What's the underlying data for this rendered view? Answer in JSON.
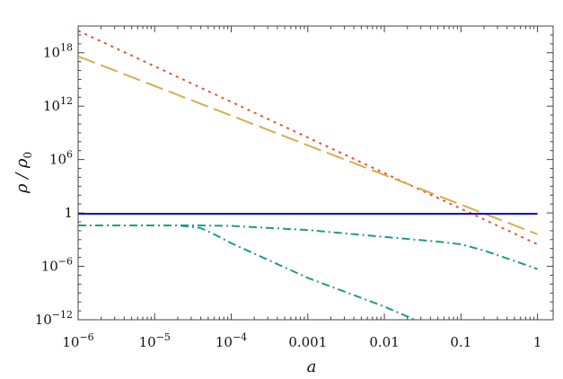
{
  "chart_data": {
    "type": "line",
    "xscale": "log",
    "yscale": "log",
    "xlim": [
      1e-06,
      1.6
    ],
    "ylim": [
      1e-12,
      1e+21
    ],
    "xlabel": "a",
    "ylabel": "ρ / ρ0",
    "grid": false,
    "legend": "none",
    "x_ticks": [
      {
        "v": 1e-06,
        "m": "10",
        "e": "−6"
      },
      {
        "v": 1e-05,
        "m": "10",
        "e": "−5"
      },
      {
        "v": 0.0001,
        "m": "10",
        "e": "−4"
      },
      {
        "v": 0.001,
        "m": "0.001",
        "e": ""
      },
      {
        "v": 0.01,
        "m": "0.01",
        "e": ""
      },
      {
        "v": 0.1,
        "m": "0.1",
        "e": ""
      },
      {
        "v": 1,
        "m": "1",
        "e": ""
      }
    ],
    "y_ticks": [
      {
        "v": 1e-12,
        "m": "10",
        "e": "−12"
      },
      {
        "v": 1e-06,
        "m": "10",
        "e": "−6"
      },
      {
        "v": 1,
        "m": "1",
        "e": ""
      },
      {
        "v": 1000000.0,
        "m": "10",
        "e": "6"
      },
      {
        "v": 1000000000000.0,
        "m": "10",
        "e": "12"
      },
      {
        "v": 1e+18,
        "m": "10",
        "e": "18"
      }
    ],
    "series": [
      {
        "color": "#e05535",
        "dash": "3,5",
        "points": [
          [
            1e-06,
            3e+20
          ],
          [
            0.001,
            300000000.0
          ],
          [
            1,
            0.0003
          ]
        ]
      },
      {
        "color": "#d4b04a",
        "dash": "20,7",
        "points": [
          [
            1e-06,
            4e+17
          ],
          [
            0.001,
            40000000.0
          ],
          [
            1,
            0.004
          ]
        ]
      },
      {
        "color": "#0000dd",
        "dash": "",
        "points": [
          [
            1e-06,
            0.8
          ],
          [
            1,
            0.8
          ]
        ]
      },
      {
        "color": "#1f9a8c",
        "dash": "9,4,2,4",
        "points": [
          [
            1e-06,
            0.04
          ],
          [
            3e-05,
            0.04
          ],
          [
            0.0001,
            0.035
          ],
          [
            0.001,
            0.012
          ],
          [
            0.01,
            0.002
          ],
          [
            0.05,
            0.0006
          ],
          [
            0.1,
            0.0003
          ],
          [
            0.2,
            6e-05
          ],
          [
            0.5,
            4e-06
          ],
          [
            1,
            5e-07
          ]
        ]
      },
      {
        "color": "#1f9a8c",
        "dash": "9,4,2,4",
        "points": [
          [
            1e-06,
            0.04
          ],
          [
            2e-05,
            0.04
          ],
          [
            4e-05,
            0.02
          ],
          [
            6e-05,
            0.004
          ],
          [
            0.0001,
            0.0004
          ],
          [
            0.001,
            5e-08
          ],
          [
            0.01,
            3e-11
          ],
          [
            0.025,
            1e-12
          ]
        ]
      }
    ]
  }
}
